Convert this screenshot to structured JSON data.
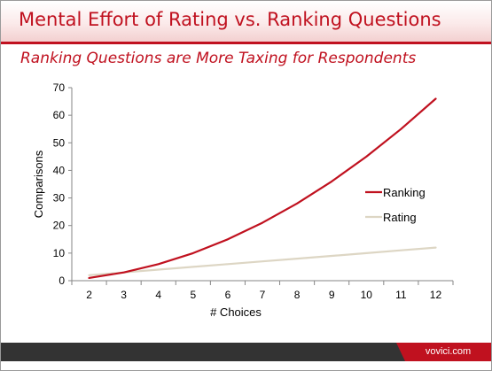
{
  "slide": {
    "title": "Mental Effort of Rating vs. Ranking Questions",
    "subtitle": "Ranking Questions are More Taxing for Respondents",
    "brand": "vovici.com"
  },
  "colors": {
    "accent": "#c0111f",
    "ranking": "#c0111f",
    "rating": "#ddd6c4",
    "footer": "#333333"
  },
  "chart_data": {
    "type": "line",
    "title": "",
    "xlabel": "# Choices",
    "ylabel": "Comparisons",
    "x": [
      2,
      3,
      4,
      5,
      6,
      7,
      8,
      9,
      10,
      11,
      12
    ],
    "xlim": [
      1.5,
      12.5
    ],
    "ylim": [
      0,
      70
    ],
    "yticks": [
      0,
      10,
      20,
      30,
      40,
      50,
      60,
      70
    ],
    "grid": false,
    "legend": "right",
    "series": [
      {
        "name": "Ranking",
        "color": "#c0111f",
        "values": [
          1,
          3,
          6,
          10,
          15,
          21,
          28,
          36,
          45,
          55,
          66
        ]
      },
      {
        "name": "Rating",
        "color": "#ddd6c4",
        "values": [
          2,
          3,
          4,
          5,
          6,
          7,
          8,
          9,
          10,
          11,
          12
        ]
      }
    ]
  }
}
